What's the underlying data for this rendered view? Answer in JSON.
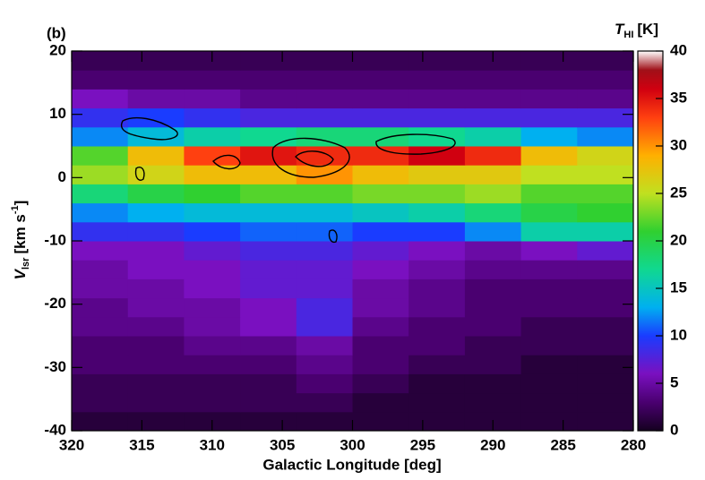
{
  "chart_data": {
    "type": "heatmap",
    "panel_label": "(b)",
    "x_label": "Galactic Longitude [deg]",
    "y_label": {
      "main": "V",
      "sub": "lsr",
      "unit": "[km s",
      "sup": "-1",
      "close": "]"
    },
    "colorbar_label": {
      "main": "T",
      "sub": "HI",
      "unit": "[K]"
    },
    "xlim": [
      320,
      280
    ],
    "xticks": [
      320,
      315,
      310,
      305,
      300,
      295,
      290,
      285,
      280
    ],
    "ylim": [
      -40,
      20
    ],
    "yticks": [
      -40,
      -30,
      -20,
      -10,
      0,
      10,
      20
    ],
    "zlim": [
      0,
      40
    ],
    "zticks": [
      0,
      5,
      10,
      15,
      20,
      25,
      30,
      35,
      40
    ],
    "colorscale": [
      {
        "value": 0,
        "color": "#150020"
      },
      {
        "value": 3,
        "color": "#4a0070"
      },
      {
        "value": 6,
        "color": "#7a10c0"
      },
      {
        "value": 10,
        "color": "#1a3cff"
      },
      {
        "value": 13,
        "color": "#00b0f0"
      },
      {
        "value": 17,
        "color": "#10d890"
      },
      {
        "value": 21,
        "color": "#30d030"
      },
      {
        "value": 25,
        "color": "#c0e020"
      },
      {
        "value": 29,
        "color": "#ffb000"
      },
      {
        "value": 33,
        "color": "#ff4010"
      },
      {
        "value": 36,
        "color": "#d00010"
      },
      {
        "value": 38,
        "color": "#a01018"
      },
      {
        "value": 40,
        "color": "#ffffff"
      }
    ],
    "x_bins": [
      320,
      316,
      312,
      308,
      304,
      300,
      296,
      292,
      288,
      284,
      280
    ],
    "y_bins": [
      -40,
      -37,
      -34,
      -31,
      -28,
      -25,
      -22,
      -19,
      -16,
      -13,
      -10,
      -7,
      -4,
      -1,
      2,
      5,
      8,
      11,
      14,
      17,
      20
    ],
    "values": [
      [
        1,
        1,
        1,
        1,
        1,
        1,
        1,
        1,
        1,
        1
      ],
      [
        2,
        2,
        2,
        2,
        2,
        1,
        1,
        1,
        1,
        1
      ],
      [
        2,
        2,
        2,
        2,
        3,
        2,
        1,
        1,
        1,
        1
      ],
      [
        3,
        3,
        3,
        3,
        4,
        3,
        2,
        2,
        1,
        1
      ],
      [
        3,
        3,
        4,
        4,
        5,
        3,
        3,
        2,
        2,
        2
      ],
      [
        4,
        4,
        5,
        6,
        8,
        4,
        3,
        3,
        2,
        2
      ],
      [
        4,
        5,
        5,
        6,
        8,
        5,
        4,
        3,
        3,
        3
      ],
      [
        5,
        5,
        6,
        7,
        7,
        5,
        4,
        3,
        3,
        3
      ],
      [
        5,
        6,
        6,
        7,
        7,
        6,
        5,
        4,
        4,
        4
      ],
      [
        6,
        6,
        7,
        8,
        8,
        7,
        6,
        5,
        6,
        7
      ],
      [
        9,
        9,
        10,
        11,
        11,
        10,
        10,
        12,
        16,
        16
      ],
      [
        12,
        13,
        14,
        14,
        14,
        15,
        16,
        18,
        20,
        21
      ],
      [
        18,
        20,
        21,
        22,
        22,
        23,
        23,
        24,
        22,
        22
      ],
      [
        24,
        26,
        28,
        28,
        30,
        28,
        27,
        27,
        25,
        25
      ],
      [
        22,
        28,
        33,
        35,
        34,
        34,
        36,
        34,
        28,
        26
      ],
      [
        12,
        14,
        16,
        17,
        18,
        18,
        17,
        16,
        13,
        12
      ],
      [
        9,
        10,
        9,
        8,
        8,
        8,
        8,
        8,
        8,
        8
      ],
      [
        6,
        5,
        5,
        4,
        4,
        4,
        4,
        4,
        4,
        4
      ],
      [
        3,
        3,
        3,
        3,
        3,
        3,
        3,
        3,
        3,
        3
      ],
      [
        2,
        2,
        2,
        2,
        2,
        2,
        2,
        2,
        2,
        2
      ]
    ]
  }
}
